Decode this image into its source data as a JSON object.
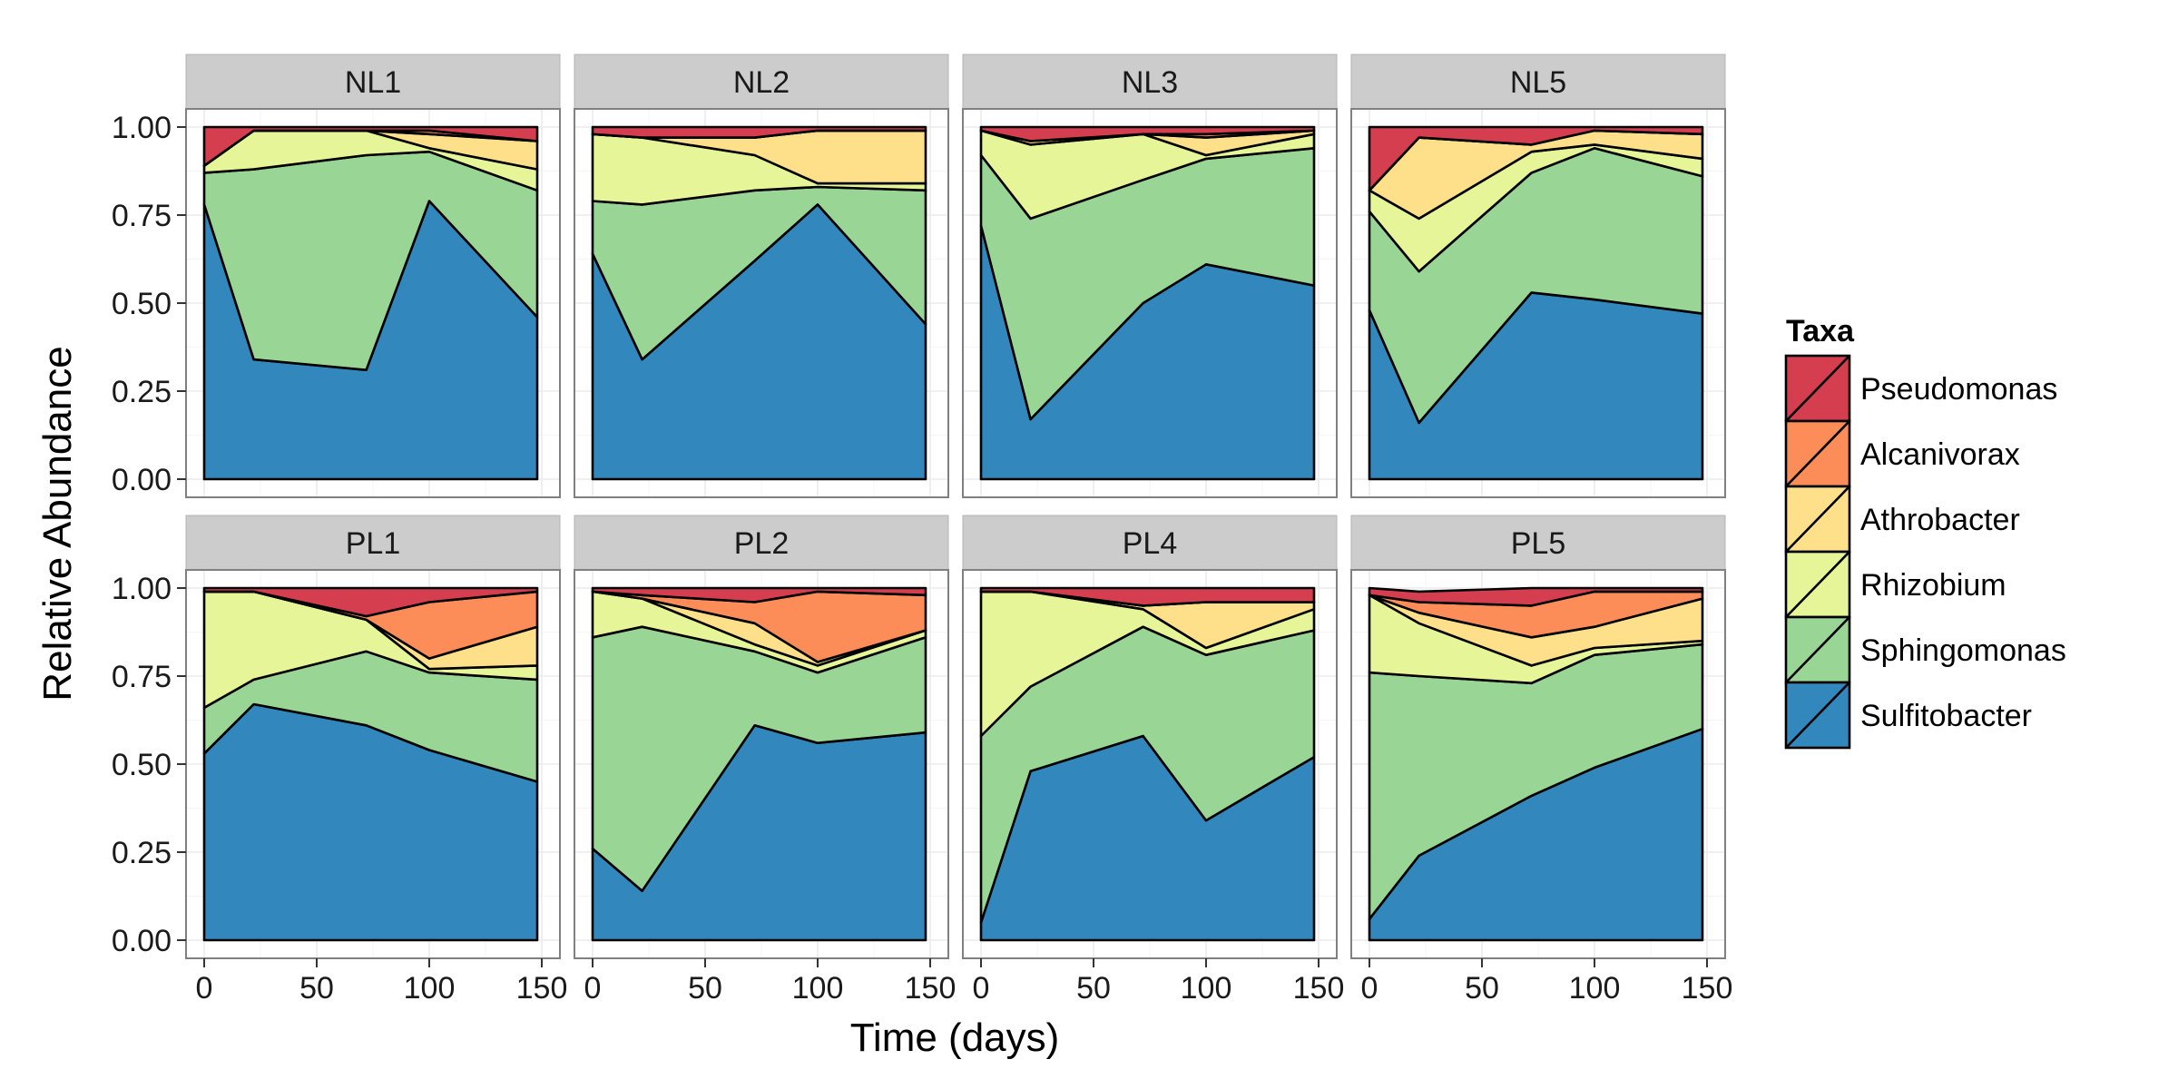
{
  "chart_data": {
    "type": "area",
    "stacked": true,
    "facet_layout": "2x4",
    "xlabel": "Time (days)",
    "ylabel": "Relative Abundance",
    "xlim": [
      0,
      150
    ],
    "ylim": [
      0,
      1
    ],
    "x_ticks": [
      "0",
      "50",
      "100",
      "150"
    ],
    "y_ticks": [
      "0.00",
      "0.25",
      "0.50",
      "0.75",
      "1.00"
    ],
    "grid": true,
    "legend": {
      "title": "Taxa",
      "position": "right",
      "entries": [
        {
          "name": "Pseudomonas",
          "color": "#d53e4f"
        },
        {
          "name": "Alcanivorax",
          "color": "#fc8d59"
        },
        {
          "name": "Athrobacter",
          "color": "#fee08b"
        },
        {
          "name": "Rhizobium",
          "color": "#e6f598"
        },
        {
          "name": "Sphingomonas",
          "color": "#99d594"
        },
        {
          "name": "Sulfitobacter",
          "color": "#3288bd"
        }
      ]
    },
    "stack_order_bottom_to_top": [
      "Sulfitobacter",
      "Sphingomonas",
      "Rhizobium",
      "Athrobacter",
      "Alcanivorax",
      "Pseudomonas"
    ],
    "panels": [
      {
        "label": "NL1",
        "x": [
          0,
          22,
          72,
          100,
          148
        ],
        "series": [
          {
            "name": "Sulfitobacter",
            "values": [
              0.78,
              0.34,
              0.31,
              0.79,
              0.46
            ]
          },
          {
            "name": "Sphingomonas",
            "values": [
              0.09,
              0.54,
              0.61,
              0.14,
              0.36
            ]
          },
          {
            "name": "Rhizobium",
            "values": [
              0.02,
              0.11,
              0.07,
              0.01,
              0.06
            ]
          },
          {
            "name": "Athrobacter",
            "values": [
              0.0,
              0.0,
              0.0,
              0.04,
              0.08
            ]
          },
          {
            "name": "Alcanivorax",
            "values": [
              0.0,
              0.0,
              0.0,
              0.01,
              0.0
            ]
          },
          {
            "name": "Pseudomonas",
            "values": [
              0.11,
              0.01,
              0.01,
              0.01,
              0.04
            ]
          }
        ]
      },
      {
        "label": "NL2",
        "x": [
          0,
          22,
          72,
          100,
          148
        ],
        "series": [
          {
            "name": "Sulfitobacter",
            "values": [
              0.64,
              0.34,
              0.62,
              0.78,
              0.44
            ]
          },
          {
            "name": "Sphingomonas",
            "values": [
              0.15,
              0.44,
              0.2,
              0.05,
              0.38
            ]
          },
          {
            "name": "Rhizobium",
            "values": [
              0.19,
              0.19,
              0.1,
              0.01,
              0.02
            ]
          },
          {
            "name": "Athrobacter",
            "values": [
              0.0,
              0.0,
              0.05,
              0.15,
              0.15
            ]
          },
          {
            "name": "Alcanivorax",
            "values": [
              0.0,
              0.0,
              0.0,
              0.0,
              0.0
            ]
          },
          {
            "name": "Pseudomonas",
            "values": [
              0.02,
              0.03,
              0.03,
              0.01,
              0.01
            ]
          }
        ]
      },
      {
        "label": "NL3",
        "x": [
          0,
          22,
          72,
          100,
          148
        ],
        "series": [
          {
            "name": "Sulfitobacter",
            "values": [
              0.72,
              0.17,
              0.5,
              0.61,
              0.55
            ]
          },
          {
            "name": "Sphingomonas",
            "values": [
              0.2,
              0.57,
              0.35,
              0.3,
              0.39
            ]
          },
          {
            "name": "Rhizobium",
            "values": [
              0.07,
              0.21,
              0.13,
              0.01,
              0.04
            ]
          },
          {
            "name": "Athrobacter",
            "values": [
              0.0,
              0.01,
              0.0,
              0.05,
              0.01
            ]
          },
          {
            "name": "Alcanivorax",
            "values": [
              0.0,
              0.0,
              0.0,
              0.01,
              0.0
            ]
          },
          {
            "name": "Pseudomonas",
            "values": [
              0.01,
              0.04,
              0.02,
              0.02,
              0.01
            ]
          }
        ]
      },
      {
        "label": "NL5",
        "x": [
          0,
          22,
          72,
          100,
          148
        ],
        "series": [
          {
            "name": "Sulfitobacter",
            "values": [
              0.48,
              0.16,
              0.53,
              0.51,
              0.47
            ]
          },
          {
            "name": "Sphingomonas",
            "values": [
              0.28,
              0.43,
              0.34,
              0.43,
              0.39
            ]
          },
          {
            "name": "Rhizobium",
            "values": [
              0.06,
              0.15,
              0.06,
              0.01,
              0.05
            ]
          },
          {
            "name": "Athrobacter",
            "values": [
              0.0,
              0.23,
              0.02,
              0.04,
              0.07
            ]
          },
          {
            "name": "Alcanivorax",
            "values": [
              0.0,
              0.0,
              0.0,
              0.0,
              0.0
            ]
          },
          {
            "name": "Pseudomonas",
            "values": [
              0.18,
              0.03,
              0.05,
              0.01,
              0.02
            ]
          }
        ]
      },
      {
        "label": "PL1",
        "x": [
          0,
          22,
          72,
          100,
          148
        ],
        "series": [
          {
            "name": "Sulfitobacter",
            "values": [
              0.53,
              0.67,
              0.61,
              0.54,
              0.45
            ]
          },
          {
            "name": "Sphingomonas",
            "values": [
              0.13,
              0.07,
              0.21,
              0.22,
              0.29
            ]
          },
          {
            "name": "Rhizobium",
            "values": [
              0.33,
              0.25,
              0.09,
              0.01,
              0.04
            ]
          },
          {
            "name": "Athrobacter",
            "values": [
              0.0,
              0.0,
              0.0,
              0.03,
              0.11
            ]
          },
          {
            "name": "Alcanivorax",
            "values": [
              0.0,
              0.0,
              0.01,
              0.16,
              0.1
            ]
          },
          {
            "name": "Pseudomonas",
            "values": [
              0.01,
              0.01,
              0.08,
              0.04,
              0.01
            ]
          }
        ]
      },
      {
        "label": "PL2",
        "x": [
          0,
          22,
          72,
          100,
          148
        ],
        "series": [
          {
            "name": "Sulfitobacter",
            "values": [
              0.26,
              0.14,
              0.61,
              0.56,
              0.59
            ]
          },
          {
            "name": "Sphingomonas",
            "values": [
              0.6,
              0.75,
              0.21,
              0.2,
              0.27
            ]
          },
          {
            "name": "Rhizobium",
            "values": [
              0.13,
              0.08,
              0.02,
              0.02,
              0.02
            ]
          },
          {
            "name": "Athrobacter",
            "values": [
              0.0,
              0.0,
              0.06,
              0.01,
              0.0
            ]
          },
          {
            "name": "Alcanivorax",
            "values": [
              0.0,
              0.01,
              0.06,
              0.2,
              0.1
            ]
          },
          {
            "name": "Pseudomonas",
            "values": [
              0.01,
              0.02,
              0.04,
              0.01,
              0.02
            ]
          }
        ]
      },
      {
        "label": "PL4",
        "x": [
          0,
          22,
          72,
          100,
          148
        ],
        "series": [
          {
            "name": "Sulfitobacter",
            "values": [
              0.05,
              0.48,
              0.58,
              0.34,
              0.52
            ]
          },
          {
            "name": "Sphingomonas",
            "values": [
              0.53,
              0.24,
              0.31,
              0.47,
              0.36
            ]
          },
          {
            "name": "Rhizobium",
            "values": [
              0.41,
              0.27,
              0.05,
              0.02,
              0.06
            ]
          },
          {
            "name": "Athrobacter",
            "values": [
              0.0,
              0.0,
              0.01,
              0.13,
              0.02
            ]
          },
          {
            "name": "Alcanivorax",
            "values": [
              0.0,
              0.0,
              0.0,
              0.0,
              0.0
            ]
          },
          {
            "name": "Pseudomonas",
            "values": [
              0.01,
              0.01,
              0.05,
              0.04,
              0.04
            ]
          }
        ]
      },
      {
        "label": "PL5",
        "x": [
          0,
          22,
          72,
          100,
          148
        ],
        "series": [
          {
            "name": "Sulfitobacter",
            "values": [
              0.06,
              0.24,
              0.41,
              0.49,
              0.6
            ]
          },
          {
            "name": "Sphingomonas",
            "values": [
              0.7,
              0.51,
              0.32,
              0.32,
              0.24
            ]
          },
          {
            "name": "Rhizobium",
            "values": [
              0.22,
              0.15,
              0.05,
              0.02,
              0.01
            ]
          },
          {
            "name": "Athrobacter",
            "values": [
              0.0,
              0.03,
              0.08,
              0.06,
              0.12
            ]
          },
          {
            "name": "Alcanivorax",
            "values": [
              0.0,
              0.03,
              0.09,
              0.1,
              0.02
            ]
          },
          {
            "name": "Pseudomonas",
            "values": [
              0.02,
              0.03,
              0.05,
              0.01,
              0.01
            ]
          }
        ]
      }
    ]
  }
}
